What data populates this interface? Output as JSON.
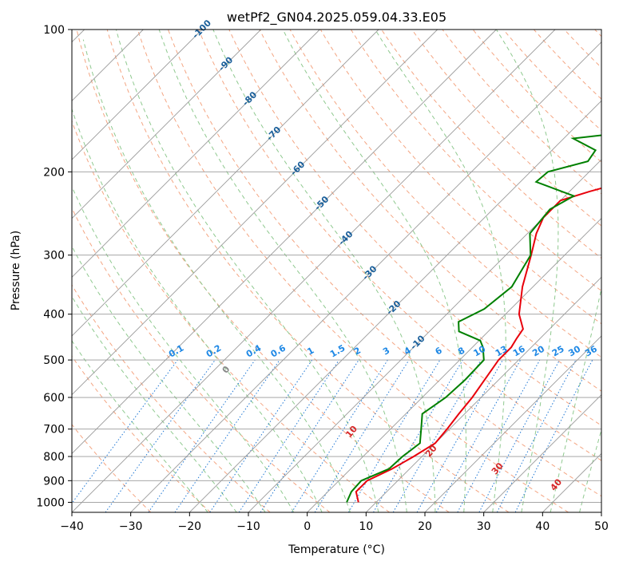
{
  "chart_data": {
    "type": "line",
    "title": "wetPf2_GN04.2025.059.04.33.E05",
    "xlabel": "Temperature (°C)",
    "ylabel": "Pressure (hPa)",
    "xlim": [
      -40,
      50
    ],
    "ylim": [
      1050,
      100
    ],
    "y_scale": "log",
    "grid": true,
    "x_ticks": [
      -40,
      -30,
      -20,
      -10,
      0,
      10,
      20,
      30,
      40,
      50
    ],
    "y_ticks": [
      100,
      200,
      300,
      400,
      500,
      600,
      700,
      800,
      900,
      1000
    ],
    "series": [
      {
        "color": "#e8000b",
        "points": [
          [
            7.0,
            1000
          ],
          [
            4.8,
            950
          ],
          [
            4.8,
            900
          ],
          [
            7.0,
            850
          ],
          [
            8.6,
            800
          ],
          [
            10.0,
            750
          ],
          [
            9.6,
            700
          ],
          [
            9.0,
            650
          ],
          [
            8.5,
            600
          ],
          [
            7.6,
            550
          ],
          [
            6.6,
            500
          ],
          [
            6.6,
            470
          ],
          [
            6.0,
            450
          ],
          [
            5.5,
            430
          ],
          [
            2.3,
            400
          ],
          [
            -1.8,
            350
          ],
          [
            -5.7,
            300
          ],
          [
            -8.5,
            270
          ],
          [
            -10.0,
            250
          ],
          [
            -10.0,
            230
          ],
          [
            -6.6,
            220
          ],
          [
            -2.2,
            210
          ],
          [
            5.6,
            200
          ],
          [
            8.6,
            195
          ],
          [
            12.3,
            180
          ],
          [
            16.0,
            170
          ],
          [
            17.6,
            160
          ],
          [
            21.0,
            150
          ],
          [
            24.3,
            140
          ],
          [
            28.5,
            130
          ],
          [
            31.0,
            120
          ],
          [
            33.7,
            110
          ],
          [
            33.8,
            100
          ]
        ]
      },
      {
        "color": "#008000",
        "points": [
          [
            5.0,
            1000
          ],
          [
            4.0,
            950
          ],
          [
            3.8,
            900
          ],
          [
            6.5,
            850
          ],
          [
            6.7,
            800
          ],
          [
            7.4,
            750
          ],
          [
            5.2,
            700
          ],
          [
            2.8,
            650
          ],
          [
            4.0,
            600
          ],
          [
            4.3,
            550
          ],
          [
            4.1,
            500
          ],
          [
            1.8,
            470
          ],
          [
            0.2,
            455
          ],
          [
            -5.0,
            435
          ],
          [
            -6.7,
            415
          ],
          [
            -4.5,
            390
          ],
          [
            -3.6,
            350
          ],
          [
            -5.8,
            300
          ],
          [
            -9.6,
            270
          ],
          [
            -10.3,
            240
          ],
          [
            -8.5,
            225
          ],
          [
            -17.3,
            210
          ],
          [
            -17.0,
            200
          ],
          [
            -12.0,
            190
          ],
          [
            -12.6,
            180
          ],
          [
            -18.4,
            170
          ],
          [
            -10.2,
            165
          ],
          [
            -9.0,
            150
          ],
          [
            -8.6,
            140
          ],
          [
            -7.4,
            130
          ],
          [
            -2.5,
            120
          ],
          [
            -0.2,
            110
          ],
          [
            -0.8,
            100
          ]
        ]
      }
    ],
    "isotherm_labels": [
      "-100",
      "-90",
      "-80",
      "-70",
      "-60",
      "-50",
      "-40",
      "-30",
      "-20",
      "-10"
    ],
    "mixing_ratio_labels": [
      "0.1",
      "0.2",
      "0.4",
      "0.6",
      "1",
      "1.5",
      "2",
      "3",
      "4",
      "6",
      "8",
      "10",
      "13",
      "16",
      "20",
      "25",
      "30",
      "36"
    ],
    "moist_adiabat_labels": [
      "0",
      "10",
      "20",
      "30",
      "40"
    ],
    "colors": {
      "dry_adiabat": "#f4a582",
      "moist_adiabat": "#8fc98f",
      "mixing_ratio": "#1f77d4",
      "isotherm": "#9a9a9a",
      "isotherm_label": "#1a5f9a",
      "mixing_label": "#1e88e5",
      "moist_label": "#d62728",
      "zero_label": "#888888"
    }
  }
}
